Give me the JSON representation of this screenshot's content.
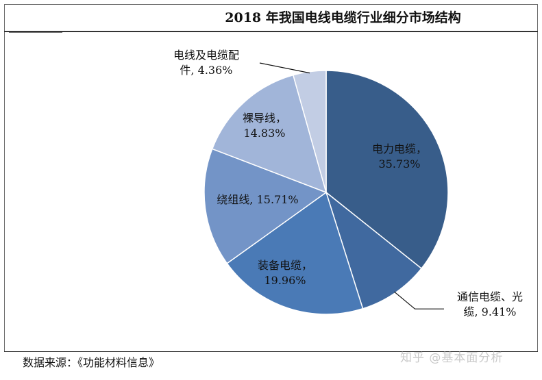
{
  "chart_data": {
    "type": "pie",
    "title": "2018 年我国电线电缆行业细分市场结构",
    "slices": [
      {
        "name": "电力电缆",
        "value": 35.73,
        "label_lines": [
          "电力电缆，",
          "35.73%"
        ],
        "color": "#385d8a"
      },
      {
        "name": "通信电缆、光缆",
        "value": 9.41,
        "label_lines": [
          "通信电缆、光",
          "缆, 9.41%"
        ],
        "color": "#40699f"
      },
      {
        "name": "装备电缆",
        "value": 19.96,
        "label_lines": [
          "装备电缆，",
          "19.96%"
        ],
        "color": "#4a7ab6"
      },
      {
        "name": "绕组线",
        "value": 15.71,
        "label_lines": [
          "绕组线, 15.71%"
        ],
        "color": "#7394c7"
      },
      {
        "name": "裸导线",
        "value": 14.83,
        "label_lines": [
          "裸导线，",
          "14.83%"
        ],
        "color": "#a1b5d9"
      },
      {
        "name": "电线及电缆配件",
        "value": 4.36,
        "label_lines": [
          "电线及电缆配",
          "件, 4.36%"
        ],
        "color": "#c2cde4"
      }
    ]
  },
  "source": "数据来源：《功能材料信息》",
  "watermark": "知乎 @基本面分析"
}
